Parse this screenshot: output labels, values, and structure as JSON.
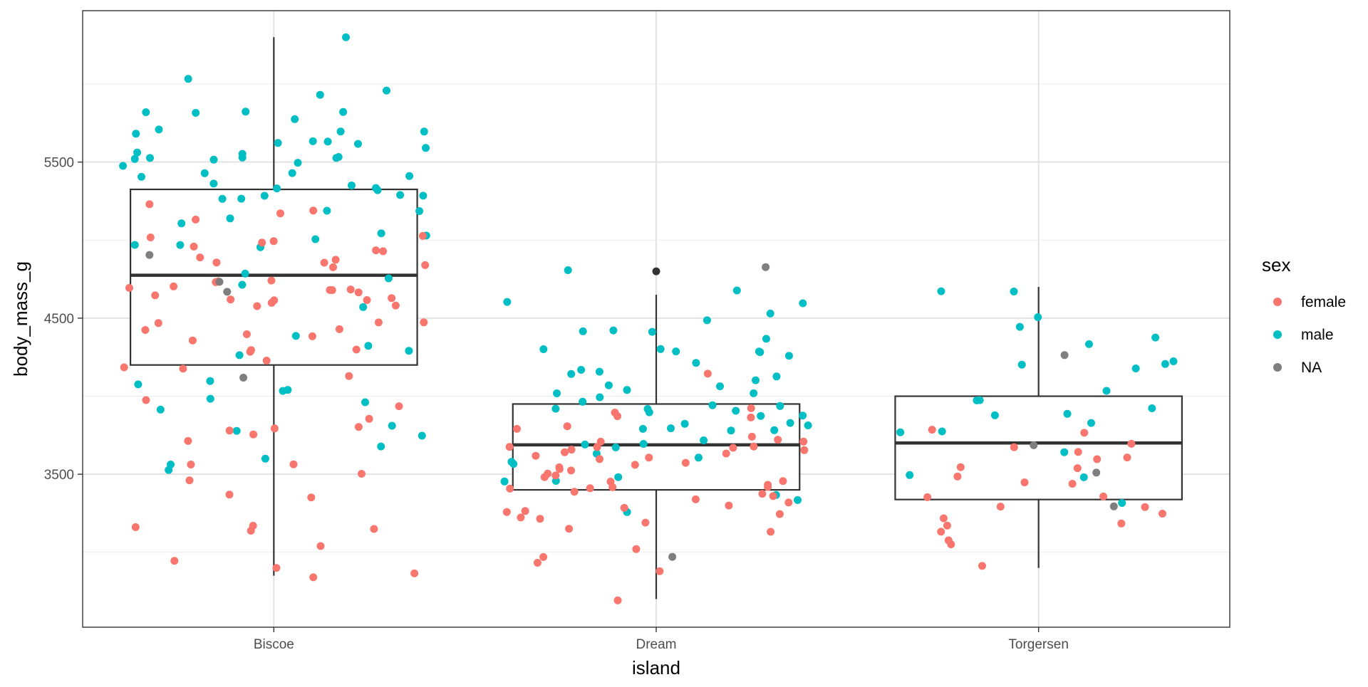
{
  "chart_data": {
    "type": "box",
    "title": "",
    "xlabel": "island",
    "ylabel": "body_mass_g",
    "categories": [
      "Biscoe",
      "Dream",
      "Torgersen"
    ],
    "y_ticks": [
      3500,
      4500,
      5500
    ],
    "ylim": [
      2520,
      6470
    ],
    "grid": true,
    "legend": {
      "title": "sex",
      "position": "right",
      "entries": [
        {
          "label": "female",
          "color": "#F8766D"
        },
        {
          "label": "male",
          "color": "#00BFC4"
        },
        {
          "label": "NA",
          "color": "#7F7F7F"
        }
      ]
    },
    "boxes": [
      {
        "category": "Biscoe",
        "whisker_low": 2850,
        "q1": 4200,
        "median": 4775,
        "q3": 5325,
        "whisker_high": 6300
      },
      {
        "category": "Dream",
        "whisker_low": 2700,
        "q1": 3400,
        "median": 3688,
        "q3": 3950,
        "whisker_high": 4650
      },
      {
        "category": "Torgersen",
        "whisker_low": 2900,
        "q1": 3338,
        "median": 3700,
        "q3": 4000,
        "whisker_high": 4700
      }
    ],
    "outliers": [
      {
        "category": "Dream",
        "y": 4800
      }
    ],
    "points": [
      {
        "category": "Biscoe",
        "sex": "male",
        "values": [
          6300,
          6000,
          5950,
          5950,
          5850,
          5850,
          5800,
          5800,
          5750,
          5700,
          5700,
          5700,
          5700,
          5650,
          5650,
          5650,
          5600,
          5600,
          5550,
          5550,
          5550,
          5550,
          5550,
          5550,
          5500,
          5500,
          5500,
          5500,
          5400,
          5400,
          5400,
          5400,
          5350,
          5350,
          5350,
          5300,
          5300,
          5300,
          5300,
          5300,
          5250,
          5250,
          5200,
          5200,
          5150,
          5100,
          5050,
          5050,
          5000,
          5000,
          5000,
          4950,
          4750,
          4725,
          4725,
          4600,
          4400,
          4300,
          4250,
          4100,
          4050,
          4050,
          4075,
          3950,
          3950,
          3900,
          3800,
          3775,
          3750,
          3700,
          3600,
          3550,
          3550,
          4300
        ]
      },
      {
        "category": "Biscoe",
        "sex": "female",
        "values": [
          5200,
          5200,
          5150,
          5100,
          5050,
          5000,
          5000,
          4975,
          4950,
          4950,
          4925,
          4900,
          4875,
          4875,
          4850,
          4850,
          4800,
          4750,
          4750,
          4725,
          4725,
          4700,
          4700,
          4700,
          4700,
          4675,
          4650,
          4650,
          4625,
          4625,
          4600,
          4600,
          4600,
          4575,
          4500,
          4450,
          4450,
          4400,
          4400,
          4400,
          4375,
          4350,
          4300,
          4300,
          4300,
          4200,
          4200,
          4200,
          4150,
          3950,
          3900,
          3825,
          3800,
          3800,
          3750,
          3750,
          3725,
          3600,
          3550,
          3500,
          3450,
          3400,
          3325,
          3200,
          3175,
          3150,
          3150,
          3075,
          2925,
          2900,
          2850,
          2850
        ]
      },
      {
        "category": "Biscoe",
        "sex": "NA",
        "values": [
          4875,
          4725,
          4650,
          4100
        ]
      },
      {
        "category": "Dream",
        "sex": "male",
        "values": [
          4800,
          4650,
          4600,
          4575,
          4500,
          4450,
          4450,
          4400,
          4400,
          4350,
          4300,
          4300,
          4300,
          4300,
          4250,
          4250,
          4200,
          4150,
          4150,
          4150,
          4100,
          4100,
          4100,
          4050,
          4050,
          4050,
          4000,
          4000,
          3950,
          3950,
          3950,
          3950,
          3900,
          3900,
          3900,
          3900,
          3875,
          3850,
          3800,
          3800,
          3800,
          3800,
          3775,
          3750,
          3725,
          3700,
          3700,
          3650,
          3650,
          3600,
          3600,
          3550,
          3500,
          3450,
          3450,
          3400,
          3325,
          3250
        ]
      },
      {
        "category": "Dream",
        "sex": "female",
        "values": [
          4150,
          3950,
          3900,
          3900,
          3850,
          3800,
          3775,
          3750,
          3725,
          3700,
          3700,
          3700,
          3700,
          3675,
          3650,
          3650,
          3650,
          3625,
          3600,
          3600,
          3600,
          3575,
          3550,
          3550,
          3550,
          3525,
          3500,
          3500,
          3500,
          3475,
          3450,
          3450,
          3450,
          3425,
          3400,
          3400,
          3400,
          3400,
          3375,
          3350,
          3325,
          3300,
          3300,
          3300,
          3275,
          3250,
          3250,
          3250,
          3200,
          3175,
          3150,
          3100,
          3050,
          3000,
          2900,
          2900,
          2700
        ]
      },
      {
        "category": "Dream",
        "sex": "NA",
        "values": [
          4800,
          2975
        ]
      },
      {
        "category": "Torgersen",
        "sex": "male",
        "values": [
          4700,
          4675,
          4500,
          4450,
          4400,
          4300,
          4250,
          4200,
          4200,
          4150,
          4000,
          4000,
          4000,
          3900,
          3900,
          3875,
          3800,
          3750,
          3750,
          3650,
          3500,
          3500,
          3325
        ]
      },
      {
        "category": "Torgersen",
        "sex": "female",
        "values": [
          3800,
          3800,
          3700,
          3700,
          3650,
          3625,
          3600,
          3575,
          3550,
          3450,
          3450,
          3450,
          3325,
          3325,
          3325,
          3300,
          3250,
          3250,
          3200,
          3200,
          3150,
          3050,
          3050,
          2900
        ]
      },
      {
        "category": "Torgersen",
        "sex": "NA",
        "values": [
          4250,
          3700,
          3475,
          3300
        ]
      }
    ]
  }
}
